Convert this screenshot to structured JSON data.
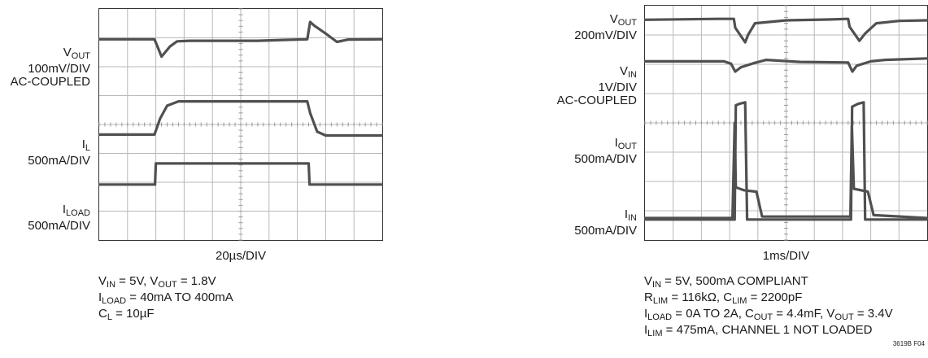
{
  "chart_data": [
    {
      "type": "line",
      "title": "",
      "timebase": "20µs/DIV",
      "divisions": {
        "x": 10,
        "y": 8
      },
      "grid": true,
      "channels": [
        {
          "name": "VOUT",
          "label_main": "V",
          "label_sub": "OUT",
          "scale": "100mV/DIV",
          "coupling": "AC-COUPLED",
          "trace": [
            [
              0,
              1.05
            ],
            [
              1.95,
              1.05
            ],
            [
              2.05,
              1.28
            ],
            [
              2.2,
              1.65
            ],
            [
              2.5,
              1.3
            ],
            [
              2.75,
              1.12
            ],
            [
              3.2,
              1.1
            ],
            [
              5.6,
              1.1
            ],
            [
              6.6,
              1.07
            ],
            [
              7.35,
              1.05
            ],
            [
              7.45,
              0.45
            ],
            [
              7.6,
              0.58
            ],
            [
              8.0,
              0.85
            ],
            [
              8.4,
              1.14
            ],
            [
              8.8,
              1.06
            ],
            [
              10,
              1.05
            ]
          ]
        },
        {
          "name": "IL",
          "label_main": "I",
          "label_sub": "L",
          "scale": "500mA/DIV",
          "trace": [
            [
              0,
              4.35
            ],
            [
              1.95,
              4.35
            ],
            [
              2.15,
              3.8
            ],
            [
              2.4,
              3.35
            ],
            [
              2.8,
              3.2
            ],
            [
              7.35,
              3.2
            ],
            [
              7.45,
              3.6
            ],
            [
              7.7,
              4.25
            ],
            [
              8.0,
              4.38
            ],
            [
              10,
              4.38
            ]
          ]
        },
        {
          "name": "ILOAD",
          "label_main": "I",
          "label_sub": "LOAD",
          "scale": "500mA/DIV",
          "trace": [
            [
              0,
              6.08
            ],
            [
              1.97,
              6.08
            ],
            [
              2.0,
              5.35
            ],
            [
              7.4,
              5.35
            ],
            [
              7.43,
              6.08
            ],
            [
              10,
              6.08
            ]
          ]
        }
      ],
      "conditions": [
        [
          {
            "t": "V"
          },
          {
            "s": "IN"
          },
          {
            "t": " = 5V, V"
          },
          {
            "s": "OUT"
          },
          {
            "t": " = 1.8V"
          }
        ],
        [
          {
            "t": "I"
          },
          {
            "s": "LOAD"
          },
          {
            "t": " = 40mA TO 400mA"
          }
        ],
        [
          {
            "t": "C"
          },
          {
            "s": "L"
          },
          {
            "t": " = 10µF"
          }
        ]
      ]
    },
    {
      "type": "line",
      "title": "",
      "timebase": "1ms/DIV",
      "divisions": {
        "x": 10,
        "y": 8
      },
      "grid": true,
      "channels": [
        {
          "name": "VOUT",
          "label_main": "V",
          "label_sub": "OUT",
          "scale": "200mV/DIV",
          "trace": [
            [
              0,
              0.48
            ],
            [
              2.6,
              0.45
            ],
            [
              3.15,
              0.45
            ],
            [
              3.2,
              0.75
            ],
            [
              3.55,
              1.25
            ],
            [
              3.65,
              1.0
            ],
            [
              3.9,
              0.6
            ],
            [
              5.0,
              0.5
            ],
            [
              6.6,
              0.47
            ],
            [
              7.2,
              0.45
            ],
            [
              7.25,
              0.72
            ],
            [
              7.6,
              1.2
            ],
            [
              7.8,
              0.95
            ],
            [
              8.2,
              0.6
            ],
            [
              9.0,
              0.52
            ],
            [
              10,
              0.5
            ]
          ]
        },
        {
          "name": "VIN",
          "label_main": "V",
          "label_sub": "IN",
          "scale": "1V/DIV",
          "coupling": "AC-COUPLED",
          "trace": [
            [
              0,
              1.9
            ],
            [
              2.8,
              1.9
            ],
            [
              3.05,
              1.98
            ],
            [
              3.2,
              2.25
            ],
            [
              3.4,
              2.1
            ],
            [
              3.9,
              1.95
            ],
            [
              4.3,
              1.85
            ],
            [
              5.5,
              1.92
            ],
            [
              7.2,
              1.94
            ],
            [
              7.35,
              2.25
            ],
            [
              7.5,
              2.05
            ],
            [
              8.0,
              1.9
            ],
            [
              8.5,
              1.85
            ],
            [
              10,
              1.8
            ]
          ]
        },
        {
          "name": "IOUT",
          "label_main": "I",
          "label_sub": "OUT",
          "scale": "500mA/DIV",
          "trace": [
            [
              0,
              7.3
            ],
            [
              3.18,
              7.3
            ],
            [
              3.22,
              3.4
            ],
            [
              3.35,
              3.35
            ],
            [
              3.55,
              3.3
            ],
            [
              3.62,
              7.3
            ],
            [
              7.3,
              7.3
            ],
            [
              7.34,
              3.45
            ],
            [
              7.55,
              3.35
            ],
            [
              7.75,
              3.3
            ],
            [
              7.8,
              7.3
            ],
            [
              10,
              7.3
            ]
          ]
        },
        {
          "name": "IIN",
          "label_main": "I",
          "label_sub": "IN",
          "scale": "500mA/DIV",
          "trace": [
            [
              0,
              7.25
            ],
            [
              3.1,
              7.25
            ],
            [
              3.18,
              4.0
            ],
            [
              3.22,
              6.2
            ],
            [
              3.5,
              6.3
            ],
            [
              3.95,
              6.35
            ],
            [
              4.15,
              7.2
            ],
            [
              7.28,
              7.2
            ],
            [
              7.33,
              4.1
            ],
            [
              7.4,
              6.25
            ],
            [
              7.9,
              6.35
            ],
            [
              8.1,
              7.15
            ],
            [
              10,
              7.25
            ]
          ]
        }
      ],
      "conditions": [
        [
          {
            "t": "V"
          },
          {
            "s": "IN"
          },
          {
            "t": " = 5V, 500mA COMPLIANT"
          }
        ],
        [
          {
            "t": "R"
          },
          {
            "s": "LIM"
          },
          {
            "t": " = 116kΩ, C"
          },
          {
            "s": "LIM"
          },
          {
            "t": " = 2200pF"
          }
        ],
        [
          {
            "t": "I"
          },
          {
            "s": "LOAD"
          },
          {
            "t": " = 0A TO 2A, C"
          },
          {
            "s": "OUT"
          },
          {
            "t": " = 4.4mF, V"
          },
          {
            "s": "OUT"
          },
          {
            "t": " = 3.4V"
          }
        ],
        [
          {
            "t": "I"
          },
          {
            "s": "LIM"
          },
          {
            "t": " = 475mA, CHANNEL 1 NOT LOADED"
          }
        ]
      ],
      "figure_id": "3619B F04"
    }
  ]
}
